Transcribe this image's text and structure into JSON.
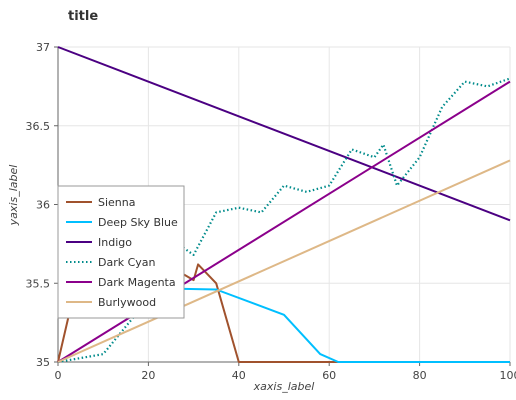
{
  "chart_data": {
    "type": "line",
    "title": "title",
    "xlabel": "xaxis_label",
    "ylabel": "yaxis_label",
    "xlim": [
      0,
      100
    ],
    "ylim": [
      35,
      37
    ],
    "x_ticks": [
      0,
      20,
      40,
      60,
      80,
      100
    ],
    "y_ticks": [
      35,
      35.5,
      36,
      36.5,
      37
    ],
    "x_tick_labels": [
      "0",
      "20",
      "40",
      "60",
      "80",
      "100"
    ],
    "y_tick_labels": [
      "35",
      "35.5",
      "36",
      "36.5",
      "37"
    ],
    "grid": true,
    "legend_position": "left-center",
    "series": [
      {
        "name": "Sienna",
        "color": "#a0522d",
        "style": "solid",
        "points": [
          [
            0,
            35.0
          ],
          [
            5,
            35.62
          ],
          [
            10,
            35.48
          ],
          [
            20,
            35.5
          ],
          [
            25,
            35.62
          ],
          [
            27,
            35.57
          ],
          [
            30,
            35.52
          ],
          [
            31,
            35.62
          ],
          [
            35,
            35.5
          ],
          [
            40,
            35.0
          ],
          [
            100,
            35.0
          ]
        ]
      },
      {
        "name": "Deep Sky Blue",
        "color": "#00bfff",
        "style": "solid",
        "points": [
          [
            0,
            35.48
          ],
          [
            35,
            35.46
          ],
          [
            50,
            35.3
          ],
          [
            58,
            35.05
          ],
          [
            62,
            35.0
          ],
          [
            100,
            35.0
          ]
        ]
      },
      {
        "name": "Indigo",
        "color": "#4b0082",
        "style": "solid",
        "points": [
          [
            0,
            37.0
          ],
          [
            100,
            35.9
          ]
        ]
      },
      {
        "name": "Dark Cyan",
        "color": "#008b8b",
        "style": "dotted",
        "points": [
          [
            0,
            35.0
          ],
          [
            10,
            35.05
          ],
          [
            20,
            35.4
          ],
          [
            25,
            35.78
          ],
          [
            30,
            35.68
          ],
          [
            35,
            35.95
          ],
          [
            40,
            35.98
          ],
          [
            45,
            35.95
          ],
          [
            50,
            36.12
          ],
          [
            55,
            36.08
          ],
          [
            60,
            36.12
          ],
          [
            65,
            36.35
          ],
          [
            70,
            36.3
          ],
          [
            72,
            36.38
          ],
          [
            75,
            36.12
          ],
          [
            80,
            36.3
          ],
          [
            85,
            36.62
          ],
          [
            90,
            36.78
          ],
          [
            95,
            36.75
          ],
          [
            100,
            36.8
          ]
        ]
      },
      {
        "name": "Dark Magenta",
        "color": "#8b008b",
        "style": "solid",
        "points": [
          [
            0,
            35.0
          ],
          [
            100,
            36.78
          ]
        ]
      },
      {
        "name": "Burlywood",
        "color": "#deb887",
        "style": "solid",
        "points": [
          [
            0,
            35.0
          ],
          [
            100,
            36.28
          ]
        ]
      }
    ]
  }
}
